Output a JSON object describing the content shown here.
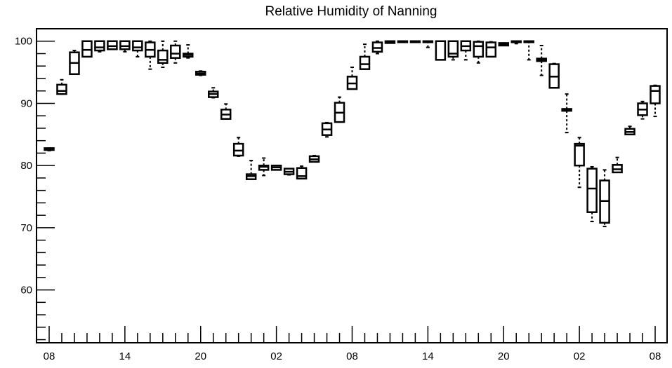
{
  "chart_data": {
    "type": "box",
    "title": "Relative Humidity of Nanning",
    "xlabel": "",
    "ylabel": "",
    "ylim": [
      51.5,
      102
    ],
    "x_tick_labels": [
      "08",
      "14",
      "20",
      "02",
      "08",
      "14",
      "20",
      "02",
      "08"
    ],
    "y_tick_values": [
      60,
      70,
      80,
      90,
      100
    ],
    "y_tick_labels": [
      "60",
      "70",
      "80",
      "90",
      "100"
    ],
    "y_minor_step": 2,
    "x_hours": 48,
    "x_ticks_per_hour": 1,
    "grid": false,
    "series": [
      {
        "values": [
          {
            "hour": 0,
            "q1": 82.5,
            "median": 82.6,
            "q3": 82.8,
            "whisker_low": 82.4,
            "whisker_high": 82.8
          },
          {
            "hour": 1,
            "q1": 91.5,
            "median": 92.0,
            "q3": 93.0,
            "whisker_low": 91.5,
            "whisker_high": 93.8
          },
          {
            "hour": 2,
            "q1": 94.7,
            "median": 96.5,
            "q3": 98.2,
            "whisker_low": 94.7,
            "whisker_high": 98.5
          },
          {
            "hour": 3,
            "q1": 97.5,
            "median": 98.6,
            "q3": 100.0,
            "whisker_low": 97.5,
            "whisker_high": 100.0
          },
          {
            "hour": 4,
            "q1": 98.5,
            "median": 99.0,
            "q3": 100.0,
            "whisker_low": 98.3,
            "whisker_high": 100.0
          },
          {
            "hour": 5,
            "q1": 98.7,
            "median": 99.2,
            "q3": 100.0,
            "whisker_low": 98.7,
            "whisker_high": 100.0
          },
          {
            "hour": 6,
            "q1": 98.7,
            "median": 99.2,
            "q3": 100.0,
            "whisker_low": 98.3,
            "whisker_high": 100.0
          },
          {
            "hour": 7,
            "q1": 98.5,
            "median": 99.0,
            "q3": 100.0,
            "whisker_low": 97.5,
            "whisker_high": 100.0
          },
          {
            "hour": 8,
            "q1": 97.5,
            "median": 98.6,
            "q3": 99.8,
            "whisker_low": 95.5,
            "whisker_high": 100.0
          },
          {
            "hour": 9,
            "q1": 96.5,
            "median": 97.0,
            "q3": 98.5,
            "whisker_low": 95.8,
            "whisker_high": 100.0
          },
          {
            "hour": 10,
            "q1": 97.3,
            "median": 98.0,
            "q3": 99.3,
            "whisker_low": 96.5,
            "whisker_high": 100.0
          },
          {
            "hour": 11,
            "q1": 97.5,
            "median": 97.8,
            "q3": 98.0,
            "whisker_low": 97.3,
            "whisker_high": 99.4
          },
          {
            "hour": 12,
            "q1": 94.6,
            "median": 94.8,
            "q3": 95.1,
            "whisker_low": 94.5,
            "whisker_high": 95.2
          },
          {
            "hour": 13,
            "q1": 91.0,
            "median": 91.5,
            "q3": 91.9,
            "whisker_low": 90.9,
            "whisker_high": 92.5
          },
          {
            "hour": 14,
            "q1": 87.5,
            "median": 88.2,
            "q3": 89.0,
            "whisker_low": 87.5,
            "whisker_high": 89.9
          },
          {
            "hour": 15,
            "q1": 81.6,
            "median": 82.4,
            "q3": 83.5,
            "whisker_low": 81.5,
            "whisker_high": 84.5
          },
          {
            "hour": 16,
            "q1": 77.8,
            "median": 78.3,
            "q3": 78.6,
            "whisker_low": 77.8,
            "whisker_high": 80.8
          },
          {
            "hour": 17,
            "q1": 79.3,
            "median": 79.8,
            "q3": 80.0,
            "whisker_low": 78.4,
            "whisker_high": 81.2
          },
          {
            "hour": 18,
            "q1": 79.3,
            "median": 79.7,
            "q3": 80.0,
            "whisker_low": 79.3,
            "whisker_high": 80.0
          },
          {
            "hour": 19,
            "q1": 78.6,
            "median": 79.0,
            "q3": 79.5,
            "whisker_low": 78.5,
            "whisker_high": 79.5
          },
          {
            "hour": 20,
            "q1": 77.9,
            "median": 78.3,
            "q3": 79.6,
            "whisker_low": 77.9,
            "whisker_high": 79.9
          },
          {
            "hour": 21,
            "q1": 80.6,
            "median": 81.0,
            "q3": 81.5,
            "whisker_low": 80.6,
            "whisker_high": 81.6
          },
          {
            "hour": 22,
            "q1": 84.9,
            "median": 85.8,
            "q3": 86.8,
            "whisker_low": 84.6,
            "whisker_high": 86.9
          },
          {
            "hour": 23,
            "q1": 87.0,
            "median": 88.5,
            "q3": 90.1,
            "whisker_low": 87.0,
            "whisker_high": 91.0
          },
          {
            "hour": 24,
            "q1": 92.3,
            "median": 93.2,
            "q3": 94.3,
            "whisker_low": 92.3,
            "whisker_high": 95.8
          },
          {
            "hour": 25,
            "q1": 95.5,
            "median": 96.3,
            "q3": 97.5,
            "whisker_low": 95.5,
            "whisker_high": 99.5
          },
          {
            "hour": 26,
            "q1": 98.3,
            "median": 98.9,
            "q3": 99.8,
            "whisker_low": 98.0,
            "whisker_high": 100.0
          },
          {
            "hour": 27,
            "q1": 99.7,
            "median": 99.9,
            "q3": 100.0,
            "whisker_low": 99.7,
            "whisker_high": 100.0
          },
          {
            "hour": 28,
            "q1": 100.0,
            "median": 100.0,
            "q3": 100.0,
            "whisker_low": 100.0,
            "whisker_high": 100.0
          },
          {
            "hour": 29,
            "q1": 100.0,
            "median": 100.0,
            "q3": 100.0,
            "whisker_low": 100.0,
            "whisker_high": 100.0
          },
          {
            "hour": 30,
            "q1": 100.0,
            "median": 100.0,
            "q3": 100.0,
            "whisker_low": 99.0,
            "whisker_high": 100.0
          },
          {
            "hour": 31,
            "q1": 97.0,
            "median": 100.0,
            "q3": 100.0,
            "whisker_low": 97.0,
            "whisker_high": 100.0
          },
          {
            "hour": 32,
            "q1": 97.5,
            "median": 98.0,
            "q3": 100.0,
            "whisker_low": 97.0,
            "whisker_high": 100.0
          },
          {
            "hour": 33,
            "q1": 98.5,
            "median": 99.2,
            "q3": 100.0,
            "whisker_low": 97.0,
            "whisker_high": 100.0
          },
          {
            "hour": 34,
            "q1": 97.5,
            "median": 99.2,
            "q3": 99.9,
            "whisker_low": 96.5,
            "whisker_high": 100.0
          },
          {
            "hour": 35,
            "q1": 97.5,
            "median": 99.0,
            "q3": 99.8,
            "whisker_low": 97.5,
            "whisker_high": 99.9
          },
          {
            "hour": 36,
            "q1": 99.3,
            "median": 99.5,
            "q3": 99.7,
            "whisker_low": 99.3,
            "whisker_high": 99.7
          },
          {
            "hour": 37,
            "q1": 100.0,
            "median": 100.0,
            "q3": 100.0,
            "whisker_low": 99.6,
            "whisker_high": 100.0
          },
          {
            "hour": 38,
            "q1": 100.0,
            "median": 100.0,
            "q3": 100.0,
            "whisker_low": 97.0,
            "whisker_high": 100.0
          },
          {
            "hour": 39,
            "q1": 96.8,
            "median": 97.0,
            "q3": 97.2,
            "whisker_low": 94.5,
            "whisker_high": 99.3
          },
          {
            "hour": 40,
            "q1": 92.5,
            "median": 94.3,
            "q3": 96.3,
            "whisker_low": 92.5,
            "whisker_high": 96.4
          },
          {
            "hour": 41,
            "q1": 88.8,
            "median": 89.0,
            "q3": 89.1,
            "whisker_low": 85.3,
            "whisker_high": 91.5
          },
          {
            "hour": 42,
            "q1": 80.0,
            "median": 83.2,
            "q3": 83.5,
            "whisker_low": 76.5,
            "whisker_high": 84.5
          },
          {
            "hour": 43,
            "q1": 72.5,
            "median": 76.3,
            "q3": 79.5,
            "whisker_low": 71.0,
            "whisker_high": 79.8
          },
          {
            "hour": 44,
            "q1": 70.8,
            "median": 74.3,
            "q3": 77.6,
            "whisker_low": 70.2,
            "whisker_high": 79.3
          },
          {
            "hour": 45,
            "q1": 78.9,
            "median": 79.4,
            "q3": 80.1,
            "whisker_low": 78.9,
            "whisker_high": 81.3
          },
          {
            "hour": 46,
            "q1": 85.0,
            "median": 85.4,
            "q3": 85.9,
            "whisker_low": 85.0,
            "whisker_high": 86.3
          },
          {
            "hour": 47,
            "q1": 88.1,
            "median": 89.0,
            "q3": 90.0,
            "whisker_low": 87.5,
            "whisker_high": 90.3
          },
          {
            "hour": 48,
            "q1": 90.0,
            "median": 92.0,
            "q3": 92.8,
            "whisker_low": 87.9,
            "whisker_high": 92.9
          }
        ]
      }
    ]
  }
}
